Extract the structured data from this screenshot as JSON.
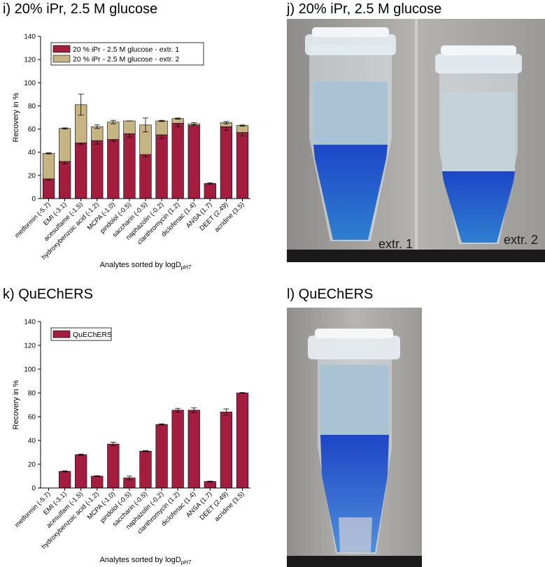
{
  "colors": {
    "extr1": "#a51d3e",
    "extr2": "#c6b483",
    "quechers": "#a51d3e",
    "axis": "#000000",
    "blue_phase": "#2b4fd0",
    "light_phase": "#a9c3d4"
  },
  "panels": {
    "i": {
      "title": "i) 20% iPr, 2.5 M glucose"
    },
    "j": {
      "title": "j) 20% iPr, 2.5 M glucose",
      "label_left": "extr. 1",
      "label_right": "extr. 2"
    },
    "k": {
      "title": "k) QuEChERS"
    },
    "l": {
      "title": "l) QuEChERS"
    }
  },
  "chart_data": [
    {
      "type": "bar",
      "stacked": true,
      "title": "",
      "xlabel": "Analytes sorted by logD",
      "xlabel_sub": "pH7",
      "ylabel": "Recovery in %",
      "ylim": [
        0,
        140
      ],
      "yticks": [
        0,
        20,
        40,
        60,
        80,
        100,
        120,
        140
      ],
      "legend": "top-left",
      "categories": [
        "metformin (-5.7)",
        "EMI (-3.1)",
        "acesulfame (-1.5)",
        "hydroxybenzoic acid (-1.2)",
        "MCPA (-1.0)",
        "pindolol (-0.5)",
        "saccharin (-0.5)",
        "naphazolin (-0.2)",
        "clarithromycin (1.2)",
        "diclofenac (1.4)",
        "ANSA (1.7)",
        "DEET (2.49)",
        "acridine (3.5)"
      ],
      "series": [
        {
          "name": "20 % iPr - 2.5 M glucose - extr. 1",
          "values": [
            17,
            32,
            48,
            50,
            51,
            56,
            38,
            55,
            65,
            63,
            13,
            62,
            57
          ],
          "errors": [
            1,
            2,
            1,
            3,
            1.5,
            3,
            2,
            3,
            3,
            0,
            0.5,
            3,
            3
          ]
        },
        {
          "name": "20 % iPr - 2.5 M glucose - extr. 2",
          "values": [
            22,
            28.5,
            33,
            12,
            15,
            11,
            25.5,
            12,
            4,
            1.5,
            0,
            3.5,
            6
          ],
          "errors": [
            0.5,
            0.5,
            9,
            1.5,
            1.5,
            0,
            6,
            0.5,
            0.5,
            1,
            0,
            1,
            0.5
          ]
        }
      ]
    },
    {
      "type": "bar",
      "stacked": false,
      "title": "",
      "xlabel": "Analytes sorted by logD",
      "xlabel_sub": "pH7",
      "ylabel": "Recovery in %",
      "ylim": [
        0,
        140
      ],
      "yticks": [
        0,
        20,
        40,
        60,
        80,
        100,
        120,
        140
      ],
      "legend": "top-left",
      "categories": [
        "metformin (-5.7)",
        "EMI (-3.1)",
        "acesulfam (-1.5)",
        "hydroxybenzoic acid (-1.2)",
        "MCPA (-1.0)",
        "pindolol (-0.5)",
        "saccharin (-0.5)",
        "naphazolin (-0.2)",
        "clarithromycin (1.2)",
        "diclofenac (1.4)",
        "ANSA (1.7)",
        "DEET (2.49)",
        "acridine (3.5)"
      ],
      "series": [
        {
          "name": "QuEChERS",
          "values": [
            0,
            14,
            28,
            10,
            37,
            8.5,
            31,
            53.5,
            65.5,
            65.5,
            5.5,
            64,
            80
          ],
          "errors": [
            0,
            0.5,
            0.5,
            0.3,
            1.5,
            1.5,
            0.5,
            0.5,
            1.5,
            2,
            0.3,
            2.5,
            0.3
          ]
        }
      ]
    }
  ]
}
